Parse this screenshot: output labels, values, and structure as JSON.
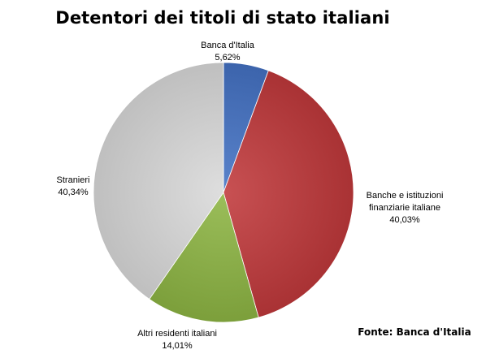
{
  "chart_data": {
    "type": "pie",
    "title": "Detentori dei titoli di stato italiani",
    "slices": [
      {
        "name": "Banca d'Italia",
        "value": 5.62,
        "value_label": "5,62%",
        "color": "#4472c4"
      },
      {
        "name_lines": [
          "Banche e istituzioni",
          "finanziarie italiane"
        ],
        "value": 40.03,
        "value_label": "40,03%",
        "color": "#c0393b"
      },
      {
        "name": "Altri residenti italiani",
        "value": 14.01,
        "value_label": "14,01%",
        "color": "#8db543"
      },
      {
        "name": "Stranieri",
        "value": 40.34,
        "value_label": "40,34%",
        "color": "#d9d9d9"
      }
    ],
    "start_angle": "12 o'clock",
    "direction": "clockwise",
    "source": "Fonte: Banca d'Italia"
  }
}
